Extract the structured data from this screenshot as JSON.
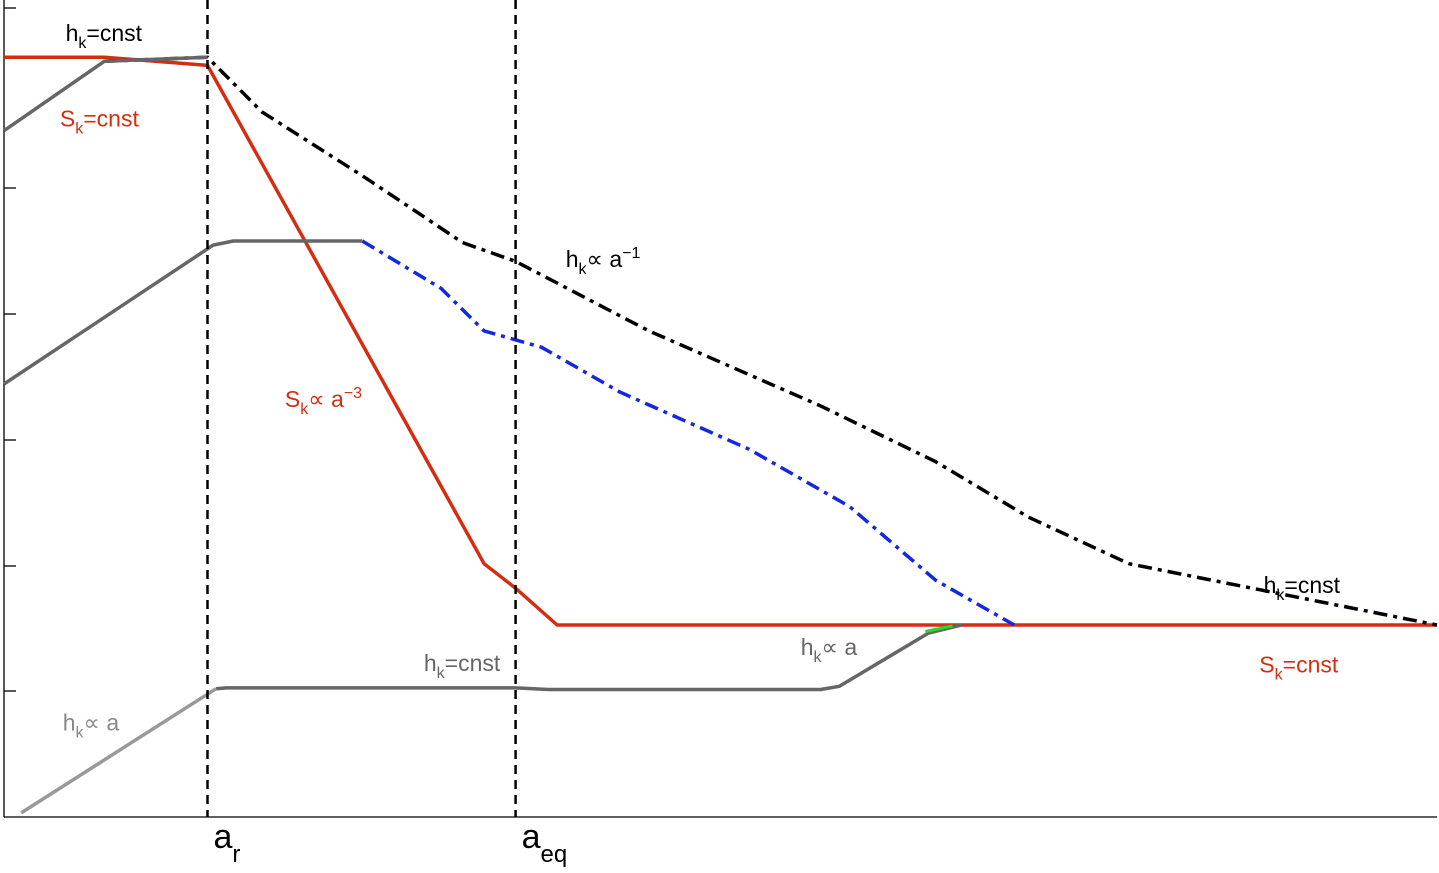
{
  "chart_data": {
    "type": "line",
    "title": "",
    "xlabel": "",
    "ylabel": "",
    "x_scale": "log",
    "y_scale": "log",
    "xlim": [
      0,
      100
    ],
    "ylim": [
      0,
      100
    ],
    "grid": false,
    "vlines": [
      {
        "x": 14.2,
        "label": "a",
        "sub": "r"
      },
      {
        "x": 35.7,
        "label": "a",
        "sub": "eq"
      }
    ],
    "series": [
      {
        "color": "#d42e12",
        "style": "solid",
        "width": 3.5,
        "points": [
          [
            0,
            93
          ],
          [
            7,
            93
          ],
          [
            14.2,
            92
          ],
          [
            33.5,
            31
          ],
          [
            35.7,
            28
          ],
          [
            38.6,
            23.5
          ],
          [
            100,
            23.5
          ]
        ]
      },
      {
        "color": "#000000",
        "style": "dashdot",
        "width": 3.5,
        "points": [
          [
            7,
            92.5
          ],
          [
            14.2,
            93
          ],
          [
            18,
            86.3
          ],
          [
            25,
            78.5
          ],
          [
            32,
            70.3
          ],
          [
            35.7,
            68
          ],
          [
            45,
            59.5
          ],
          [
            57,
            50.3
          ],
          [
            65,
            43.5
          ],
          [
            71.5,
            36.7
          ],
          [
            78.5,
            31
          ],
          [
            100,
            23.5
          ]
        ]
      },
      {
        "color": "#1428e0",
        "style": "dashdot",
        "width": 3.5,
        "points": [
          [
            25,
            70.5
          ],
          [
            30.5,
            64.7
          ],
          [
            33.5,
            59.5
          ],
          [
            37.5,
            57.5
          ],
          [
            43,
            52
          ],
          [
            52,
            45
          ],
          [
            59,
            38
          ],
          [
            65,
            29
          ],
          [
            68,
            26
          ],
          [
            70.5,
            23.5
          ]
        ]
      },
      {
        "color": "#666666",
        "style": "solid",
        "width": 3.5,
        "points": [
          [
            0,
            84
          ],
          [
            7,
            92.5
          ],
          [
            14.2,
            93
          ]
        ]
      },
      {
        "color": "#666666",
        "style": "solid",
        "width": 3.5,
        "points": [
          [
            0,
            53
          ],
          [
            14.6,
            70
          ],
          [
            16,
            70.5
          ],
          [
            25,
            70.5
          ]
        ]
      },
      {
        "color": "#666666",
        "style": "solid",
        "width": 3.5,
        "points": [
          [
            14.8,
            15.7
          ],
          [
            15.5,
            15.8
          ],
          [
            35.7,
            15.8
          ],
          [
            38,
            15.6
          ],
          [
            57,
            15.6
          ],
          [
            58.3,
            16
          ],
          [
            64.5,
            22.5
          ],
          [
            66.8,
            23.5
          ]
        ]
      },
      {
        "color": "#999999",
        "style": "solid",
        "width": 3.5,
        "points": [
          [
            1.2,
            0.5
          ],
          [
            14.8,
            15.7
          ]
        ]
      },
      {
        "color": "#22dd22",
        "style": "solid",
        "width": 3,
        "points": [
          [
            64.3,
            22.7
          ],
          [
            66.2,
            23.4
          ]
        ]
      }
    ],
    "annotations": [
      {
        "x": 4.3,
        "y": 95,
        "color": "#000000",
        "base": "h",
        "sub": "k",
        "text": "=cnst"
      },
      {
        "x": 3.9,
        "y": 84.5,
        "color": "#d42e12",
        "base": "S",
        "sub": "k",
        "text": "=cnst"
      },
      {
        "x": 39.2,
        "y": 67.3,
        "color": "#000000",
        "base": "h",
        "sub": "k",
        "text": "∝ a",
        "sup": "−1"
      },
      {
        "x": 19.6,
        "y": 50.2,
        "color": "#d42e12",
        "base": "S",
        "sub": "k",
        "text": "∝ a",
        "sup": "−3"
      },
      {
        "x": 87.9,
        "y": 27.4,
        "color": "#000000",
        "base": "h",
        "sub": "k",
        "text": "=cnst"
      },
      {
        "x": 87.6,
        "y": 17.7,
        "color": "#d42e12",
        "base": "S",
        "sub": "k",
        "text": "=cnst"
      },
      {
        "x": 29.3,
        "y": 17.9,
        "color": "#666666",
        "base": "h",
        "sub": "k",
        "text": "=cnst"
      },
      {
        "x": 55.6,
        "y": 19.8,
        "color": "#666666",
        "base": "h",
        "sub": "k",
        "text": "∝ a"
      },
      {
        "x": 4.1,
        "y": 10.6,
        "color": "#888888",
        "base": "h",
        "sub": "k",
        "text": "∝ a"
      }
    ]
  }
}
